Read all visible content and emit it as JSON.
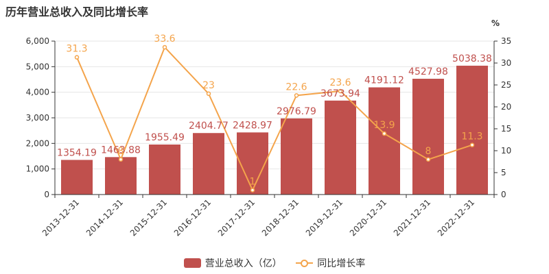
{
  "title": "历年营业总收入及同比增长率",
  "legend": {
    "bar_label": "营业总收入（亿）",
    "line_label": "同比增长率"
  },
  "colors": {
    "bar": "#c0504d",
    "line": "#f4a44b",
    "axis": "#333333",
    "grid": "#e6e6e6"
  },
  "chart_data": {
    "type": "bar",
    "categories": [
      "2013-12-31",
      "2014-12-31",
      "2015-12-31",
      "2016-12-31",
      "2017-12-31",
      "2018-12-31",
      "2019-12-31",
      "2020-12-31",
      "2021-12-31",
      "2022-12-31"
    ],
    "series": [
      {
        "name": "营业总收入（亿）",
        "type": "bar",
        "axis": "left",
        "values": [
          1354.19,
          1463.88,
          1955.49,
          2404.77,
          2428.97,
          2976.79,
          3673.94,
          4191.12,
          4527.98,
          5038.38
        ],
        "labels": [
          "1354.19",
          "1463.88",
          "1955.49",
          "2404.77",
          "2428.97",
          "2976.79",
          "3673.94",
          "4191.12",
          "4527.98",
          "5038.38"
        ]
      },
      {
        "name": "同比增长率",
        "type": "line",
        "axis": "right",
        "values": [
          31.3,
          8,
          33.6,
          23,
          1,
          22.6,
          23.6,
          13.9,
          8,
          11.3
        ],
        "labels": [
          "31.3",
          "8",
          "33.6",
          "23",
          "1",
          "22.6",
          "23.6",
          "13.9",
          "8",
          "11.3"
        ]
      }
    ],
    "y_left": {
      "ticks": [
        0,
        1000,
        2000,
        3000,
        4000,
        5000,
        6000
      ],
      "tick_labels": [
        "0",
        "1,000",
        "2,000",
        "3,000",
        "4,000",
        "5,000",
        "6,000"
      ],
      "ylim": [
        0,
        6000
      ]
    },
    "y_right": {
      "unit": "%",
      "ticks": [
        0,
        5,
        10,
        15,
        20,
        25,
        30,
        35
      ],
      "tick_labels": [
        "0",
        "5",
        "10",
        "15",
        "20",
        "25",
        "30",
        "35"
      ],
      "ylim": [
        0,
        35
      ]
    },
    "grid": true,
    "legend_position": "bottom-center"
  }
}
